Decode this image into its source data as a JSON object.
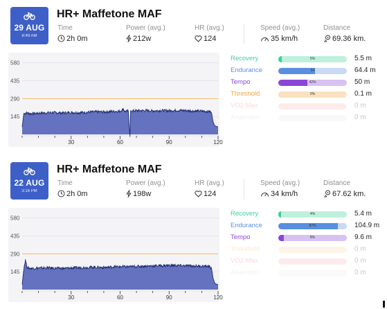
{
  "colors": {
    "badge": "#3d5fc7",
    "recovery": "#3bd197",
    "endurance": "#5a8fe0",
    "tempo": "#8a47d6",
    "threshold": "#f2a541",
    "vo2max": "#ea5a6a",
    "anaerobic": "#c9c9c9",
    "chart_fill": "#4a5bb5",
    "chart_line": "#1e2a6e",
    "maf_line": "#f4b860"
  },
  "labels": {
    "time": "Time",
    "power": "Power (avg.)",
    "hr": "HR (avg.)",
    "speed": "Speed (avg.)",
    "distance": "Distance"
  },
  "activities": [
    {
      "date": "29 AUG",
      "time_of_day": "8:49 AM",
      "title": "HR+ Maffetone MAF",
      "duration": "2h 0m",
      "power": "212w",
      "hr": "124",
      "speed": "35 km/h",
      "distance": "69.36 km.",
      "chart_data": {
        "type": "area",
        "y_ticks": [
          "580",
          "435",
          "290",
          "145"
        ],
        "x_ticks": [
          "30",
          "60",
          "90",
          "120"
        ],
        "ylim": [
          0,
          640
        ],
        "xlim": [
          0,
          120
        ],
        "maf_line": 290,
        "points": [
          [
            0,
            60
          ],
          [
            1,
            170
          ],
          [
            3,
            175
          ],
          [
            5,
            168
          ],
          [
            10,
            172
          ],
          [
            15,
            175
          ],
          [
            20,
            177
          ],
          [
            25,
            174
          ],
          [
            30,
            178
          ],
          [
            35,
            176
          ],
          [
            40,
            180
          ],
          [
            45,
            183
          ],
          [
            50,
            182
          ],
          [
            55,
            186
          ],
          [
            60,
            188
          ],
          [
            62,
            205
          ],
          [
            63,
            186
          ],
          [
            65,
            189
          ],
          [
            66,
            -20
          ],
          [
            66.5,
            190
          ],
          [
            70,
            192
          ],
          [
            75,
            193
          ],
          [
            80,
            191
          ],
          [
            85,
            194
          ],
          [
            90,
            192
          ],
          [
            95,
            195
          ],
          [
            100,
            193
          ],
          [
            105,
            190
          ],
          [
            110,
            188
          ],
          [
            115,
            186
          ],
          [
            116,
            175
          ],
          [
            117,
            100
          ],
          [
            118,
            70
          ],
          [
            120,
            60
          ]
        ]
      },
      "zones": [
        {
          "name": "Recovery",
          "pct": "5%",
          "fill": 0.05,
          "distance": "5.5 m",
          "dim": false,
          "key": "recovery"
        },
        {
          "name": "Endurance",
          "pct": "54",
          "fill": 0.54,
          "distance": "64.4 m",
          "dim": false,
          "key": "endurance"
        },
        {
          "name": "Tempo",
          "pct": "42%",
          "fill": 0.42,
          "distance": "50 m",
          "dim": false,
          "key": "tempo"
        },
        {
          "name": "Threshold",
          "pct": "0%",
          "fill": 0,
          "distance": "0.1 m",
          "dim": false,
          "key": "threshold"
        },
        {
          "name": "VO2 Max",
          "pct": "",
          "fill": 0,
          "distance": "0 m",
          "dim": true,
          "key": "vo2max"
        },
        {
          "name": "Anaerobic",
          "pct": "",
          "fill": 0,
          "distance": "0 m",
          "dim": true,
          "key": "anaerobic"
        }
      ]
    },
    {
      "date": "22 AUG",
      "time_of_day": "3:16 PM",
      "title": "HR+ Maffetone MAF",
      "duration": "2h 0m",
      "power": "198w",
      "hr": "124",
      "speed": "34 km/h",
      "distance": "67.62 km.",
      "chart_data": {
        "type": "area",
        "y_ticks": [
          "580",
          "435",
          "290",
          "145"
        ],
        "x_ticks": [
          "30",
          "60",
          "90",
          "120"
        ],
        "ylim": [
          0,
          640
        ],
        "xlim": [
          0,
          120
        ],
        "maf_line": 290,
        "points": [
          [
            0,
            40
          ],
          [
            1,
            170
          ],
          [
            2,
            240
          ],
          [
            3,
            180
          ],
          [
            5,
            172
          ],
          [
            10,
            175
          ],
          [
            15,
            176
          ],
          [
            20,
            174
          ],
          [
            25,
            172
          ],
          [
            30,
            175
          ],
          [
            35,
            178
          ],
          [
            40,
            180
          ],
          [
            45,
            182
          ],
          [
            50,
            178
          ],
          [
            55,
            184
          ],
          [
            60,
            186
          ],
          [
            65,
            185
          ],
          [
            70,
            188
          ],
          [
            75,
            190
          ],
          [
            80,
            192
          ],
          [
            85,
            194
          ],
          [
            90,
            196
          ],
          [
            95,
            195
          ],
          [
            100,
            193
          ],
          [
            105,
            192
          ],
          [
            110,
            190
          ],
          [
            115,
            188
          ],
          [
            116,
            170
          ],
          [
            117,
            90
          ],
          [
            118,
            50
          ],
          [
            120,
            40
          ]
        ]
      },
      "zones": [
        {
          "name": "Recovery",
          "pct": "4%",
          "fill": 0.04,
          "distance": "5.4 m",
          "dim": false,
          "key": "recovery"
        },
        {
          "name": "Endurance",
          "pct": "87%",
          "fill": 0.87,
          "distance": "104.9 m",
          "dim": false,
          "key": "endurance"
        },
        {
          "name": "Tempo",
          "pct": "8%",
          "fill": 0.08,
          "distance": "9.6 m",
          "dim": false,
          "key": "tempo"
        },
        {
          "name": "Threshold",
          "pct": "",
          "fill": 0,
          "distance": "0 m",
          "dim": true,
          "key": "threshold"
        },
        {
          "name": "VO2 Max",
          "pct": "",
          "fill": 0,
          "distance": "0 m",
          "dim": true,
          "key": "vo2max"
        },
        {
          "name": "Anaerobic",
          "pct": "",
          "fill": 0,
          "distance": "0 m",
          "dim": true,
          "key": "anaerobic"
        }
      ]
    }
  ]
}
